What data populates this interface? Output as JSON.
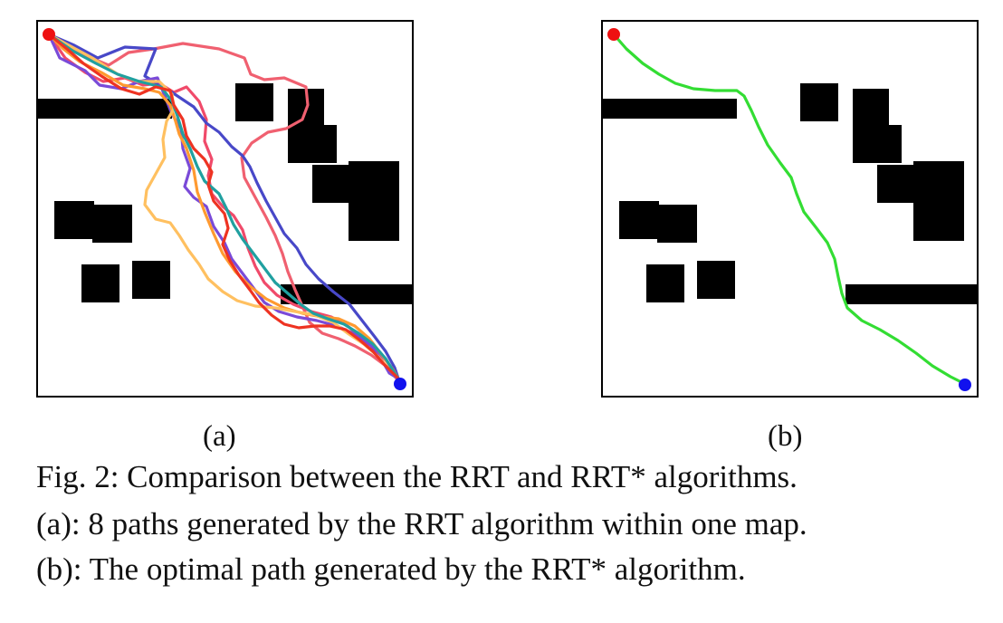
{
  "figure": {
    "panel_a_label": "(a)",
    "panel_b_label": "(b)",
    "caption_line1": "Fig. 2: Comparison between the RRT and RRT* algorithms.",
    "caption_line2": "(a): 8 paths generated by the RRT algorithm within one map.",
    "caption_line3": "(b): The optimal path generated by the RRT* algorithm."
  },
  "colors": {
    "obstacle": "#000000",
    "start": "#ee1111",
    "goal": "#1111ee",
    "rrt_paths": [
      "#f06070",
      "#f04a6a",
      "#4848c8",
      "#7a4ad8",
      "#ff9a30",
      "#ffc060",
      "#20a0a0",
      "#ee3322"
    ],
    "rrt_star_path": "#33dd33"
  }
}
